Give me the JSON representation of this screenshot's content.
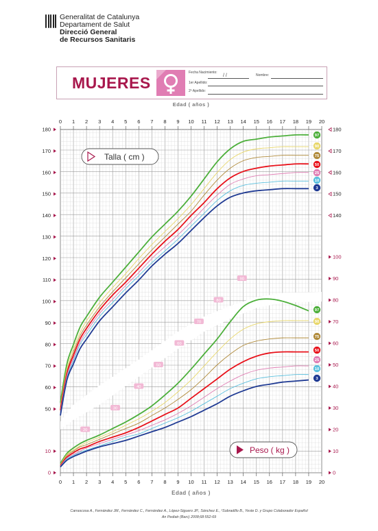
{
  "header": {
    "org_line1": "Generalitat de Catalunya",
    "org_line2": "Departament de Salut",
    "org_line3": "Direcció General",
    "org_line4": "de Recursos Sanitaris",
    "title": "MUJERES",
    "field_date": "Fecha Nacimiento:",
    "field_date_sep": "/     /",
    "field_name": "Nombre:",
    "field_surname1": "1er Apellido:",
    "field_surname2": "2º Apellido:"
  },
  "labels": {
    "edad_top": "Edad ( años )",
    "edad_bottom": "Edad ( años )",
    "talla": "Talla ( cm )",
    "peso": "Peso ( kg )"
  },
  "colors": {
    "brand": "#a8174c",
    "symbol_bg": "#e07db3",
    "p3": "#1f3a93",
    "p10": "#5bc0de",
    "p25": "#e07db3",
    "p50": "#e8111a",
    "p75": "#b08a3a",
    "p90": "#e8d76a",
    "p97": "#4caf3a"
  },
  "chart_data": {
    "type": "line",
    "x": [
      0,
      0.5,
      1,
      1.5,
      2,
      3,
      4,
      5,
      6,
      7,
      8,
      9,
      10,
      11,
      12,
      13,
      14,
      15,
      16,
      17,
      18,
      19
    ],
    "xlim": [
      0,
      20
    ],
    "xlabel": "Edad ( años )",
    "x_ticks": [
      "0",
      "1",
      "2",
      "3",
      "4",
      "5",
      "6",
      "7",
      "8",
      "9",
      "10",
      "11",
      "12",
      "13",
      "14",
      "15",
      "16",
      "17",
      "18",
      "19",
      "20"
    ],
    "talla": {
      "ylabel": "Talla ( cm )",
      "ylim": [
        40,
        180
      ],
      "left_ticks": [
        "50",
        "60",
        "70",
        "80",
        "90",
        "100",
        "110",
        "120",
        "130",
        "140",
        "150",
        "160",
        "170",
        "180"
      ],
      "right_ticks": [
        "140",
        "150",
        "160",
        "170",
        "180"
      ],
      "series": [
        {
          "name": "97",
          "values": [
            53,
            71,
            80,
            88,
            93,
            102,
            109,
            116,
            123,
            130,
            136,
            142,
            149,
            157,
            165,
            171,
            174.5,
            175.5,
            176.5,
            177,
            177.5,
            177.5
          ]
        },
        {
          "name": "90",
          "values": [
            51.5,
            69,
            78,
            85.5,
            91,
            99.5,
            106.5,
            113,
            120,
            126.5,
            132.5,
            138.5,
            145,
            152.5,
            160,
            166,
            169.5,
            171,
            171.5,
            172,
            172,
            172
          ]
        },
        {
          "name": "75",
          "values": [
            50.5,
            67.5,
            76.5,
            84,
            89,
            97.5,
            104.5,
            111,
            117.5,
            124,
            130,
            136,
            142,
            149.5,
            156.5,
            162,
            165.5,
            167,
            167.5,
            168,
            168,
            168
          ]
        },
        {
          "name": "50",
          "values": [
            49.5,
            66.5,
            75,
            82.5,
            87.5,
            96,
            103,
            109,
            115.5,
            122,
            128,
            133.5,
            140,
            146,
            152.5,
            157.5,
            160.5,
            162,
            163,
            163.5,
            164,
            164
          ]
        },
        {
          "name": "25",
          "values": [
            48.5,
            65.5,
            73.5,
            81,
            86,
            94.5,
            101,
            107.5,
            113.5,
            120,
            125.5,
            131,
            137,
            143.5,
            149.5,
            154.5,
            157,
            158.5,
            159,
            159.5,
            160,
            160
          ]
        },
        {
          "name": "10",
          "values": [
            48,
            64.5,
            72.5,
            80,
            84.5,
            93,
            99.5,
            106,
            112,
            118,
            123.5,
            129,
            135,
            141,
            147,
            151.5,
            154,
            155,
            155.5,
            156,
            156,
            156
          ]
        },
        {
          "name": "3",
          "values": [
            47,
            63.5,
            71,
            78,
            82.5,
            91,
            97.5,
            104,
            110,
            116.5,
            122,
            127,
            133,
            139,
            144.5,
            148.5,
            150.5,
            151.5,
            152,
            152.5,
            152.5,
            152.5
          ]
        }
      ]
    },
    "peso": {
      "ylabel": "Peso ( kg )",
      "ylim": [
        0,
        100
      ],
      "left_ticks": [
        "0",
        "10"
      ],
      "right_ticks": [
        "0",
        "10",
        "20",
        "30",
        "40",
        "50",
        "60",
        "70",
        "80",
        "90",
        "100"
      ],
      "series": [
        {
          "name": "97",
          "values": [
            4.3,
            9,
            11.5,
            13.5,
            15,
            17.5,
            20.5,
            23.5,
            27,
            31,
            36,
            41.5,
            48,
            55,
            62,
            70,
            77,
            80,
            80.5,
            79.5,
            77.5,
            75
          ]
        },
        {
          "name": "90",
          "values": [
            3.8,
            8.5,
            10.5,
            12.5,
            14,
            16.5,
            19,
            22,
            25,
            28.5,
            32.5,
            37.5,
            43,
            49.5,
            56,
            62,
            66.5,
            69,
            70,
            70.5,
            70.5,
            70.5
          ]
        },
        {
          "name": "75",
          "values": [
            3.5,
            8,
            10,
            12,
            13,
            15.5,
            18,
            20.5,
            23,
            26.5,
            30,
            34,
            38.5,
            44,
            50,
            55,
            59,
            61,
            62,
            62.5,
            62.5,
            62.5
          ]
        },
        {
          "name": "50",
          "values": [
            3.3,
            7.2,
            9.3,
            11,
            12,
            14.5,
            16.5,
            18.5,
            21,
            24,
            27,
            30,
            34.5,
            39,
            43.5,
            48,
            51.5,
            54,
            55.5,
            56,
            56,
            56
          ]
        },
        {
          "name": "25",
          "values": [
            3.1,
            6.8,
            8.5,
            10,
            11.5,
            13.5,
            15.5,
            17.5,
            19.5,
            22,
            24.5,
            27.5,
            31,
            35,
            39,
            42.5,
            45.5,
            47.5,
            48.5,
            49,
            49.5,
            49.5
          ]
        },
        {
          "name": "10",
          "values": [
            2.9,
            6.4,
            8,
            9.5,
            10.5,
            12.5,
            14.5,
            16.5,
            18,
            20.5,
            23,
            25.5,
            28.5,
            32,
            35.5,
            39,
            41.5,
            43.5,
            44.5,
            45,
            45.5,
            45.5
          ]
        },
        {
          "name": "3",
          "values": [
            2.7,
            5.8,
            7.5,
            8.8,
            10,
            12,
            13.5,
            15,
            17,
            19,
            21,
            23.5,
            26,
            29,
            32,
            35.5,
            38,
            40,
            41,
            42,
            42.5,
            43
          ]
        }
      ]
    },
    "percentile_labels": [
      "97",
      "90",
      "75",
      "50",
      "25",
      "10",
      "3"
    ],
    "peso_band_labels": [
      "20",
      "30",
      "40",
      "50",
      "60",
      "70",
      "80",
      "90"
    ]
  },
  "footer": {
    "citation_line1": "Carrascosa A., Fernández JM., Fernández C., Fernández A., López-Siguero JP., Sánchez E., ¹Sobradillo B., Yeste D. y Grupo Colaborador Español",
    "citation_line2": "An Pediatr (Barc) 2008;68:552-69"
  }
}
